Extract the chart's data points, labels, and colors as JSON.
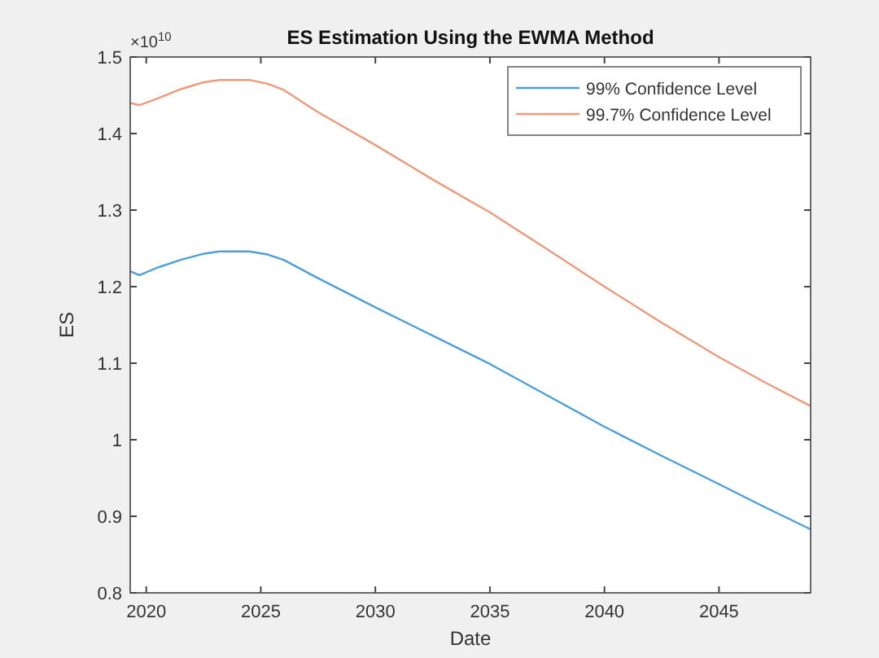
{
  "chart_data": {
    "type": "line",
    "title": "ES Estimation Using the EWMA Method",
    "xlabel": "Date",
    "ylabel": "ES",
    "annotations": [
      "×10$^{10}$"
    ],
    "x": [
      2019.3,
      2019.7,
      2020.5,
      2021.5,
      2022.5,
      2023.2,
      2024.5,
      2025.3,
      2026,
      2027.5,
      2030,
      2032.5,
      2035,
      2037.5,
      2040,
      2042.5,
      2045,
      2047,
      2049
    ],
    "series": [
      {
        "name": "99% Confidence Level",
        "color": "#4d9fd6",
        "values": [
          1.22,
          1.215,
          1.225,
          1.235,
          1.243,
          1.246,
          1.246,
          1.242,
          1.235,
          1.211,
          1.173,
          1.136,
          1.099,
          1.058,
          1.017,
          0.979,
          0.942,
          0.912,
          0.883
        ]
      },
      {
        "name": "99.7% Confidence Level",
        "color": "#ec9a7c",
        "values": [
          1.44,
          1.437,
          1.446,
          1.458,
          1.467,
          1.47,
          1.47,
          1.465,
          1.457,
          1.428,
          1.385,
          1.34,
          1.297,
          1.249,
          1.2,
          1.153,
          1.108,
          1.075,
          1.044
        ]
      }
    ],
    "xlim": [
      2019.3,
      2049
    ],
    "xticks": [
      2020,
      2025,
      2030,
      2035,
      2040,
      2045
    ],
    "ylim": [
      0.8,
      1.5
    ],
    "yticks": [
      0.8,
      0.9,
      1,
      1.1,
      1.2,
      1.3,
      1.4,
      1.5
    ],
    "grid": false,
    "legend": "top right",
    "line_style": "solid",
    "marker": "none"
  }
}
